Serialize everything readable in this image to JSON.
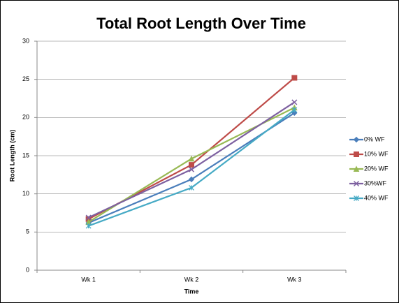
{
  "chart_data": {
    "type": "line",
    "title": "Total Root Length Over Time",
    "x_label": "Time",
    "y_label": "Root Length (cm)",
    "categories": [
      "Wk 1",
      "Wk 2",
      "Wk 3"
    ],
    "series": [
      {
        "name": "0% WF",
        "color": "#4a7ebb",
        "marker": "diamond",
        "values": [
          6.2,
          11.9,
          20.6
        ]
      },
      {
        "name": "10% WF",
        "color": "#be4b48",
        "marker": "square",
        "values": [
          6.7,
          13.8,
          25.2
        ]
      },
      {
        "name": "20% WF",
        "color": "#98b954",
        "marker": "triangle",
        "values": [
          6.3,
          14.6,
          21.3
        ]
      },
      {
        "name": "30%WF",
        "color": "#7d60a0",
        "marker": "x",
        "values": [
          6.9,
          13.2,
          22.0
        ]
      },
      {
        "name": "40% WF",
        "color": "#46aac5",
        "marker": "star",
        "values": [
          5.8,
          10.8,
          21.0
        ]
      }
    ],
    "ylim": [
      0,
      30
    ],
    "yticks": [
      0,
      5,
      10,
      15,
      20,
      25,
      30
    ],
    "grid": true,
    "legend": "right"
  }
}
